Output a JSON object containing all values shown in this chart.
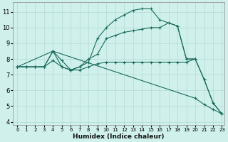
{
  "bg_color": "#cff0eb",
  "line_color": "#1a6b5e",
  "grid_color": "#b8ddd8",
  "xlabel": "Humidex (Indice chaleur)",
  "xlim": [
    -0.5,
    23.3
  ],
  "ylim": [
    3.8,
    11.6
  ],
  "yticks": [
    4,
    5,
    6,
    7,
    8,
    9,
    10,
    11
  ],
  "xticks": [
    0,
    1,
    2,
    3,
    4,
    5,
    6,
    7,
    8,
    9,
    10,
    11,
    12,
    13,
    14,
    15,
    16,
    17,
    18,
    19,
    20,
    21,
    22,
    23
  ],
  "series": [
    {
      "x": [
        0,
        1,
        2,
        3,
        4,
        5,
        6,
        7,
        8,
        9,
        10,
        11,
        12,
        13,
        14,
        15,
        16,
        17,
        18,
        19,
        20,
        21,
        22,
        23
      ],
      "y": [
        7.5,
        7.5,
        7.5,
        7.5,
        8.5,
        7.5,
        7.3,
        7.5,
        7.8,
        9.3,
        10.0,
        10.5,
        10.8,
        11.1,
        11.2,
        11.2,
        10.5,
        10.3,
        10.1,
        8.0,
        8.0,
        6.7,
        5.2,
        4.5
      ]
    },
    {
      "x": [
        0,
        1,
        2,
        3,
        4,
        5,
        6,
        7,
        8,
        9,
        10,
        11,
        12,
        13,
        14,
        15,
        16,
        17,
        18,
        19,
        20,
        21,
        22,
        23
      ],
      "y": [
        7.5,
        7.5,
        7.5,
        7.5,
        8.5,
        7.9,
        7.3,
        7.5,
        8.0,
        8.3,
        9.3,
        9.5,
        9.7,
        9.8,
        9.9,
        10.0,
        10.0,
        10.3,
        10.1,
        8.0,
        8.0,
        6.7,
        5.2,
        4.5
      ]
    },
    {
      "x": [
        0,
        1,
        2,
        3,
        4,
        5,
        6,
        7,
        8,
        9,
        10,
        11,
        12,
        13,
        14,
        15,
        16,
        17,
        18,
        19,
        20
      ],
      "y": [
        7.5,
        7.5,
        7.5,
        7.5,
        7.9,
        7.5,
        7.3,
        7.3,
        7.5,
        7.7,
        7.8,
        7.8,
        7.8,
        7.8,
        7.8,
        7.8,
        7.8,
        7.8,
        7.8,
        7.8,
        8.0
      ]
    },
    {
      "x": [
        0,
        4,
        20,
        21,
        22,
        23
      ],
      "y": [
        7.5,
        8.5,
        5.5,
        5.1,
        4.8,
        4.5
      ]
    }
  ]
}
